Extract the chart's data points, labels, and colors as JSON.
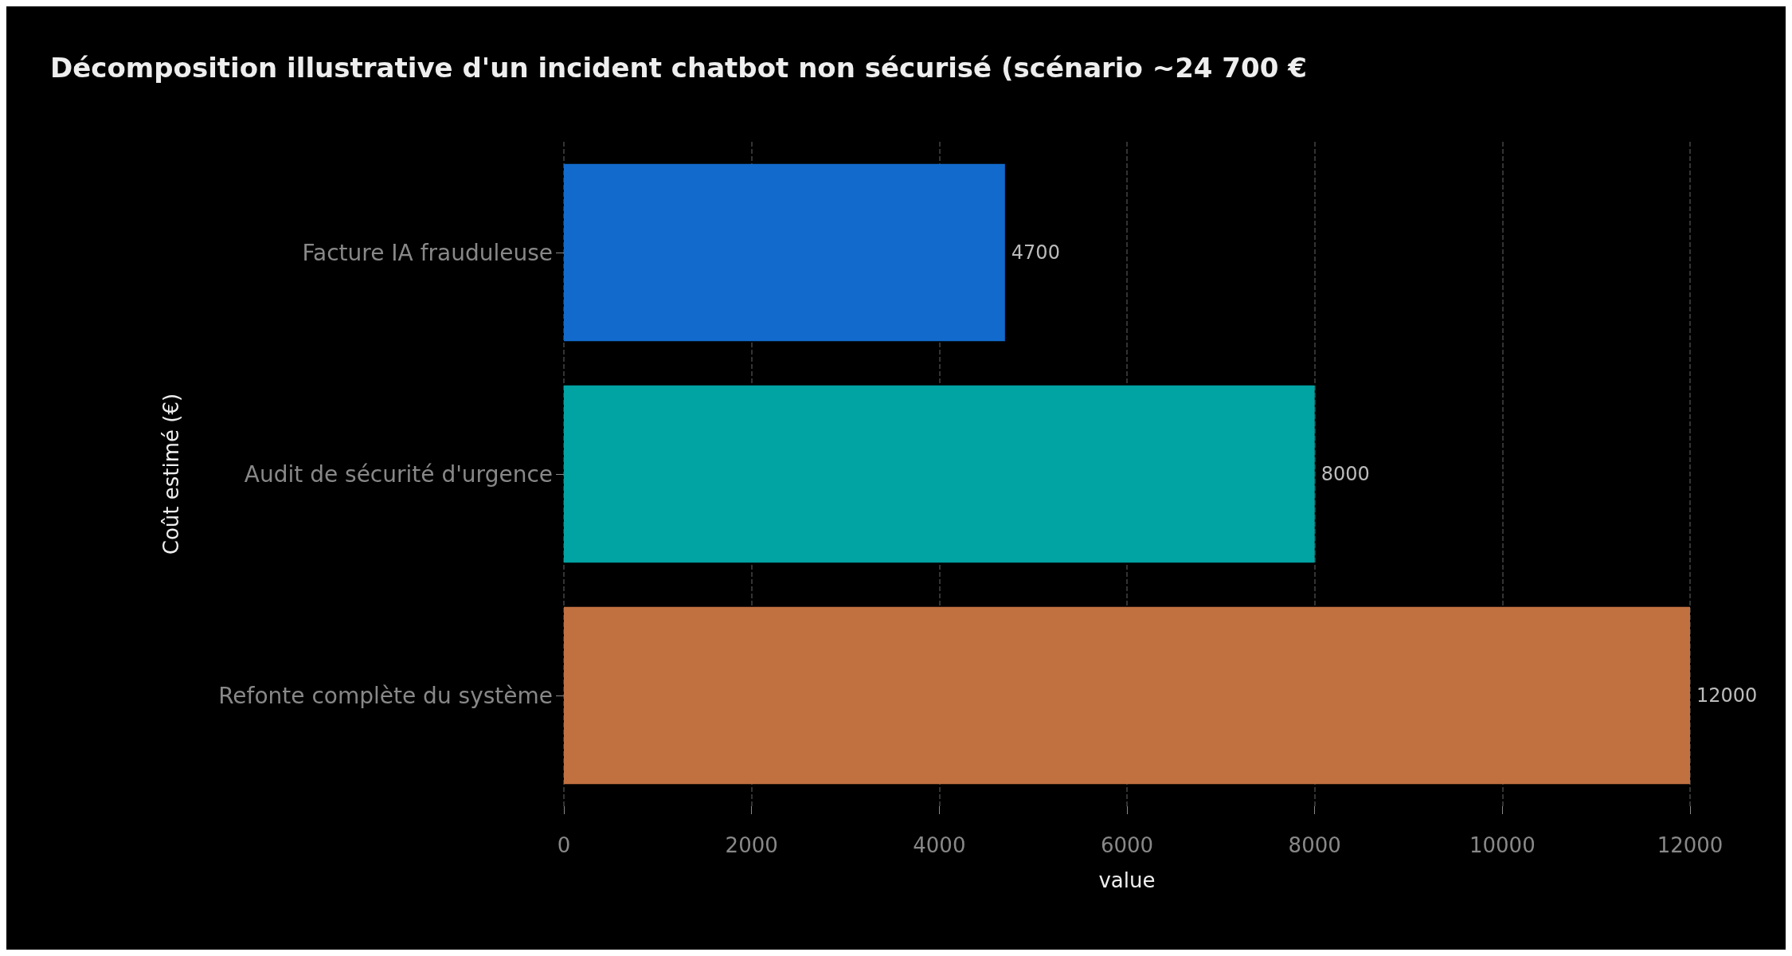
{
  "chart_data": {
    "type": "bar",
    "orientation": "horizontal",
    "title": "Décomposition illustrative d'un incident chatbot non sécurisé (scénario ~24 700 €",
    "xlabel": "value",
    "ylabel": "Coût estimé (€)",
    "categories": [
      "Facture IA frauduleuse",
      "Audit de sécurité d'urgence",
      "Refonte complète du système"
    ],
    "values": [
      4700,
      8000,
      12000
    ],
    "colors": [
      "#126bcc",
      "#01a3a3",
      "#c17040"
    ],
    "xlim": [
      0,
      12000
    ],
    "xticks": [
      0,
      2000,
      4000,
      6000,
      8000,
      10000,
      12000
    ],
    "grid": "x",
    "data_labels": true
  }
}
